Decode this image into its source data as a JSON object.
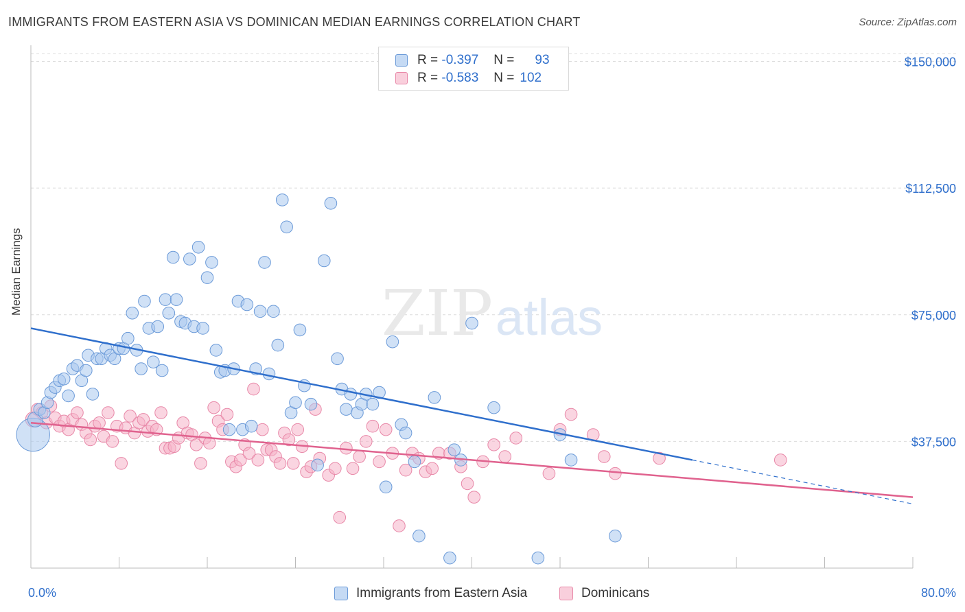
{
  "title": "IMMIGRANTS FROM EASTERN ASIA VS DOMINICAN MEDIAN EARNINGS CORRELATION CHART",
  "source": "Source: ZipAtlas.com",
  "watermark": {
    "zip": "ZIP",
    "atlas": "atlas"
  },
  "legend_top": {
    "rows": [
      {
        "r_label": "R =",
        "r_value": "-0.397",
        "n_label": "N =",
        "n_value": "93"
      },
      {
        "r_label": "R =",
        "r_value": "-0.583",
        "n_label": "N =",
        "n_value": "102"
      }
    ]
  },
  "legend_bottom": {
    "items": [
      {
        "label": "Immigrants from Eastern Asia"
      },
      {
        "label": "Dominicans"
      }
    ]
  },
  "colors": {
    "blue_fill": "#a9c8ee",
    "blue_stroke": "#6b9ad8",
    "blue_line": "#2f6fcc",
    "pink_fill": "#f5b3c8",
    "pink_stroke": "#e888a8",
    "pink_line": "#e0628e",
    "tick_text": "#2f6fcc",
    "grid": "#dcdcdc"
  },
  "chart_data": {
    "type": "scatter",
    "title": "IMMIGRANTS FROM EASTERN ASIA VS DOMINICAN MEDIAN EARNINGS CORRELATION CHART",
    "xlabel": "",
    "ylabel": "Median Earnings",
    "xlim": [
      0,
      80
    ],
    "ylim": [
      0,
      156000
    ],
    "x_tick_labels": [
      "0.0%",
      "80.0%"
    ],
    "y_ticks": [
      37500,
      75000,
      112500,
      150000
    ],
    "y_tick_labels": [
      "$37,500",
      "$75,000",
      "$112,500",
      "$150,000"
    ],
    "grid": "horizontal dashed",
    "legend_placement": "top-center and bottom",
    "series": [
      {
        "name": "Immigrants from Eastern Asia",
        "r": -0.397,
        "n": 93,
        "trend": {
          "x": [
            0,
            60
          ],
          "y": [
            71000,
            32000
          ]
        },
        "trend_dashed_extension": {
          "x": [
            60,
            80
          ],
          "y": [
            32000,
            19000
          ]
        },
        "points": [
          [
            0.2,
            39500,
            22
          ],
          [
            0.4,
            44000,
            10
          ],
          [
            0.8,
            47000,
            8
          ],
          [
            1.2,
            46000,
            8
          ],
          [
            1.5,
            49000,
            8
          ],
          [
            1.8,
            52000,
            8
          ],
          [
            2.2,
            53500,
            8
          ],
          [
            2.6,
            55500,
            8
          ],
          [
            3,
            56000,
            8
          ],
          [
            3.4,
            51000,
            8
          ],
          [
            3.8,
            59000,
            8
          ],
          [
            4.2,
            60000,
            8
          ],
          [
            4.6,
            55500,
            8
          ],
          [
            5,
            58500,
            8
          ],
          [
            5.2,
            63000,
            8
          ],
          [
            5.6,
            51500,
            8
          ],
          [
            6,
            62000,
            8
          ],
          [
            6.4,
            62000,
            8
          ],
          [
            6.8,
            65000,
            8
          ],
          [
            7.2,
            63000,
            8
          ],
          [
            7.6,
            62000,
            8
          ],
          [
            8,
            65000,
            8
          ],
          [
            8.4,
            65000,
            8
          ],
          [
            8.8,
            68000,
            8
          ],
          [
            9.2,
            75500,
            8
          ],
          [
            9.6,
            64500,
            8
          ],
          [
            10,
            59000,
            8
          ],
          [
            10.3,
            79000,
            8
          ],
          [
            10.7,
            71000,
            8
          ],
          [
            11.1,
            61000,
            8
          ],
          [
            11.5,
            71500,
            8
          ],
          [
            11.9,
            58500,
            8
          ],
          [
            12.2,
            79500,
            8
          ],
          [
            12.5,
            75500,
            8
          ],
          [
            12.9,
            92000,
            8
          ],
          [
            13.2,
            79500,
            8
          ],
          [
            13.6,
            73000,
            8
          ],
          [
            14,
            72500,
            8
          ],
          [
            14.4,
            91500,
            8
          ],
          [
            14.8,
            71500,
            8
          ],
          [
            15.2,
            95000,
            8
          ],
          [
            15.6,
            71000,
            8
          ],
          [
            16,
            86000,
            8
          ],
          [
            16.4,
            90500,
            8
          ],
          [
            16.8,
            64500,
            8
          ],
          [
            17.2,
            58000,
            8
          ],
          [
            17.6,
            58500,
            8
          ],
          [
            18,
            41000,
            8
          ],
          [
            18.4,
            59000,
            8
          ],
          [
            18.8,
            79000,
            8
          ],
          [
            19.2,
            41000,
            8
          ],
          [
            19.6,
            78000,
            8
          ],
          [
            20,
            42000,
            8
          ],
          [
            20.4,
            59000,
            8
          ],
          [
            20.8,
            76000,
            8
          ],
          [
            21.2,
            90500,
            8
          ],
          [
            21.6,
            57500,
            8
          ],
          [
            22,
            76000,
            8
          ],
          [
            22.4,
            66000,
            8
          ],
          [
            22.8,
            109000,
            8
          ],
          [
            23.2,
            101000,
            8
          ],
          [
            23.6,
            46000,
            8
          ],
          [
            24,
            49000,
            8
          ],
          [
            24.4,
            70500,
            8
          ],
          [
            24.8,
            54000,
            8
          ],
          [
            25.4,
            48500,
            8
          ],
          [
            26,
            30500,
            8
          ],
          [
            26.6,
            91000,
            8
          ],
          [
            27.2,
            108000,
            8
          ],
          [
            27.8,
            62000,
            8
          ],
          [
            28.2,
            53000,
            8
          ],
          [
            28.6,
            47000,
            8
          ],
          [
            29,
            51500,
            8
          ],
          [
            29.6,
            46000,
            8
          ],
          [
            30,
            48500,
            8
          ],
          [
            30.4,
            51500,
            8
          ],
          [
            31,
            48500,
            8
          ],
          [
            31.6,
            52000,
            8
          ],
          [
            32.2,
            24000,
            8
          ],
          [
            32.8,
            67000,
            8
          ],
          [
            33.6,
            42500,
            8
          ],
          [
            34,
            40000,
            8
          ],
          [
            34.8,
            31500,
            8
          ],
          [
            35.2,
            9500,
            8
          ],
          [
            36.6,
            50500,
            8
          ],
          [
            38,
            3000,
            8
          ],
          [
            38.4,
            35000,
            8
          ],
          [
            39,
            32000,
            8
          ],
          [
            40,
            72500,
            8
          ],
          [
            42,
            47500,
            8
          ],
          [
            46,
            3000,
            8
          ],
          [
            48,
            39500,
            8
          ],
          [
            49,
            32000,
            8
          ],
          [
            53,
            9500,
            8
          ]
        ]
      },
      {
        "name": "Dominicans",
        "r": -0.583,
        "n": 102,
        "trend": {
          "x": [
            0,
            80
          ],
          "y": [
            43000,
            21000
          ]
        },
        "points": [
          [
            0.2,
            44000,
            10
          ],
          [
            0.6,
            47000,
            8
          ],
          [
            1,
            46000,
            8
          ],
          [
            1.4,
            43000,
            8
          ],
          [
            1.8,
            48000,
            8
          ],
          [
            2.2,
            44500,
            8
          ],
          [
            2.6,
            42000,
            8
          ],
          [
            3,
            43500,
            8
          ],
          [
            3.4,
            41000,
            8
          ],
          [
            3.8,
            44000,
            8
          ],
          [
            4.2,
            46000,
            8
          ],
          [
            4.6,
            42500,
            8
          ],
          [
            5,
            40000,
            8
          ],
          [
            5.4,
            38000,
            8
          ],
          [
            5.8,
            42000,
            8
          ],
          [
            6.2,
            43000,
            8
          ],
          [
            6.6,
            39000,
            8
          ],
          [
            7,
            46000,
            8
          ],
          [
            7.4,
            37500,
            8
          ],
          [
            7.8,
            42000,
            8
          ],
          [
            8.2,
            31000,
            8
          ],
          [
            8.6,
            41500,
            8
          ],
          [
            9,
            45000,
            8
          ],
          [
            9.4,
            40000,
            8
          ],
          [
            9.8,
            43000,
            8
          ],
          [
            10.2,
            44000,
            8
          ],
          [
            10.6,
            40500,
            8
          ],
          [
            11,
            42000,
            8
          ],
          [
            11.4,
            41000,
            8
          ],
          [
            11.8,
            46000,
            8
          ],
          [
            12.2,
            35500,
            8
          ],
          [
            12.6,
            35500,
            8
          ],
          [
            13,
            36000,
            8
          ],
          [
            13.4,
            38500,
            8
          ],
          [
            13.8,
            43000,
            8
          ],
          [
            14.2,
            40000,
            8
          ],
          [
            14.6,
            39500,
            8
          ],
          [
            15,
            36500,
            8
          ],
          [
            15.4,
            31000,
            8
          ],
          [
            15.8,
            38500,
            8
          ],
          [
            16.2,
            37000,
            8
          ],
          [
            16.6,
            47500,
            8
          ],
          [
            17,
            43500,
            8
          ],
          [
            17.4,
            41000,
            8
          ],
          [
            17.8,
            45500,
            8
          ],
          [
            18.2,
            31500,
            8
          ],
          [
            18.6,
            30000,
            8
          ],
          [
            19,
            32000,
            8
          ],
          [
            19.4,
            36500,
            8
          ],
          [
            19.8,
            34000,
            8
          ],
          [
            20.2,
            53000,
            8
          ],
          [
            20.6,
            32000,
            8
          ],
          [
            21,
            41000,
            8
          ],
          [
            21.4,
            35000,
            8
          ],
          [
            21.8,
            35000,
            8
          ],
          [
            22.2,
            33000,
            8
          ],
          [
            22.6,
            31000,
            8
          ],
          [
            23,
            40000,
            8
          ],
          [
            23.4,
            38000,
            8
          ],
          [
            23.8,
            31000,
            8
          ],
          [
            24.2,
            41000,
            8
          ],
          [
            24.6,
            36000,
            8
          ],
          [
            25,
            28500,
            8
          ],
          [
            25.4,
            30000,
            8
          ],
          [
            25.8,
            47000,
            8
          ],
          [
            26.2,
            32500,
            8
          ],
          [
            27,
            27500,
            8
          ],
          [
            27.6,
            29500,
            8
          ],
          [
            28,
            15000,
            8
          ],
          [
            28.6,
            35500,
            8
          ],
          [
            29.2,
            29500,
            8
          ],
          [
            29.8,
            33000,
            8
          ],
          [
            30.4,
            37500,
            8
          ],
          [
            31,
            42000,
            8
          ],
          [
            31.6,
            31500,
            8
          ],
          [
            32.2,
            41000,
            8
          ],
          [
            32.8,
            34000,
            8
          ],
          [
            33.4,
            12500,
            8
          ],
          [
            34,
            29000,
            8
          ],
          [
            34.6,
            34000,
            8
          ],
          [
            35.2,
            32500,
            8
          ],
          [
            35.8,
            28500,
            8
          ],
          [
            36.4,
            29500,
            8
          ],
          [
            37,
            34000,
            8
          ],
          [
            38,
            34000,
            8
          ],
          [
            39,
            30000,
            8
          ],
          [
            39.6,
            25000,
            8
          ],
          [
            40.2,
            21000,
            8
          ],
          [
            41,
            31500,
            8
          ],
          [
            42,
            36500,
            8
          ],
          [
            43,
            33000,
            8
          ],
          [
            44,
            38500,
            8
          ],
          [
            47,
            28000,
            8
          ],
          [
            48,
            41000,
            8
          ],
          [
            49,
            45500,
            8
          ],
          [
            51,
            39500,
            8
          ],
          [
            52,
            33000,
            8
          ],
          [
            53,
            28000,
            8
          ],
          [
            57,
            32500,
            8
          ],
          [
            68,
            32000,
            8
          ]
        ]
      }
    ]
  }
}
